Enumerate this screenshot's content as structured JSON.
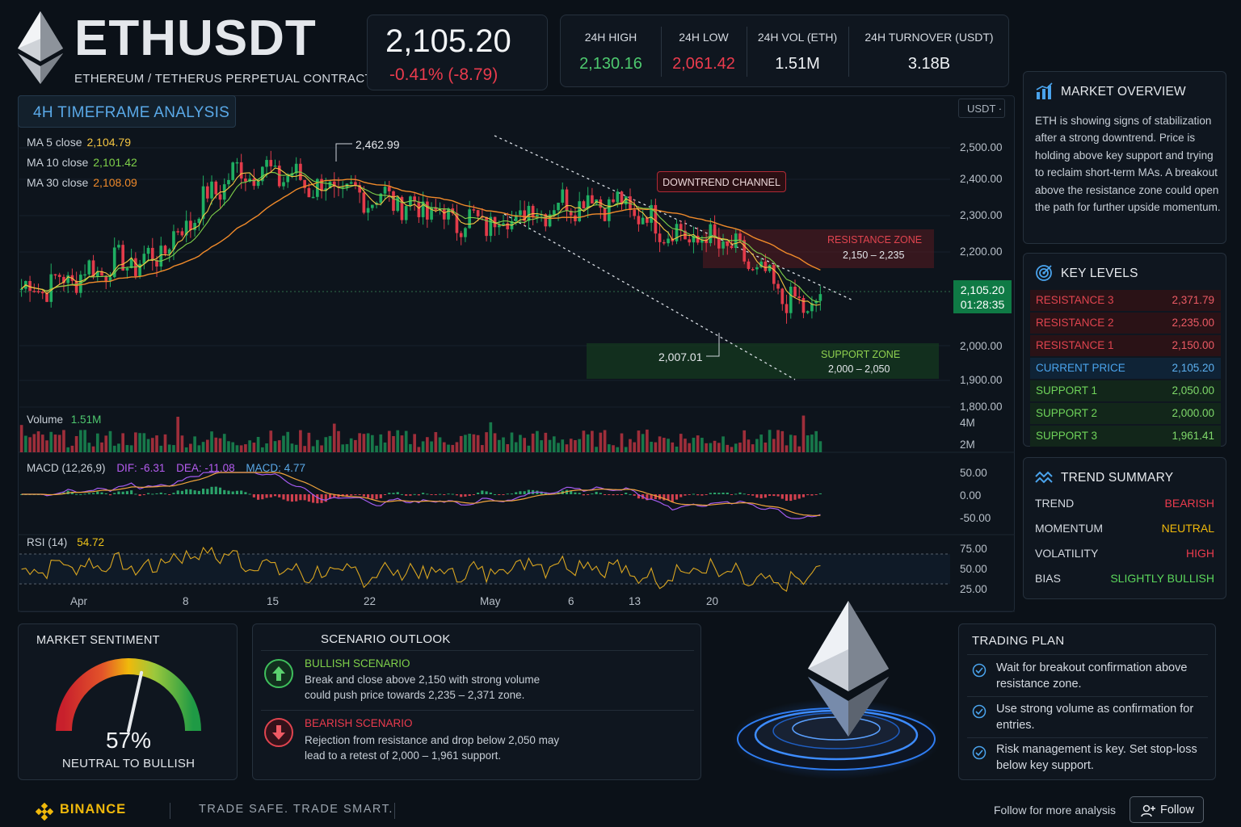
{
  "header": {
    "symbol": "ETHUSDT",
    "subtitle": "ETHEREUM / TETHERUS PERPETUAL CONTRACT",
    "last_price": "2,105.20",
    "change": "-0.41% (-8.79)",
    "stats": [
      {
        "label": "24H HIGH",
        "value": "2,130.16",
        "color": "#4ec96f"
      },
      {
        "label": "24H LOW",
        "value": "2,061.42",
        "color": "#ea3b4d"
      },
      {
        "label": "24H VOL (ETH)",
        "value": "1.51M",
        "color": "#eef1f4"
      },
      {
        "label": "24H TURNOVER (USDT)",
        "value": "3.18B",
        "color": "#eef1f4"
      }
    ]
  },
  "chart": {
    "timeframe": "4H TIMEFRAME ANALYSIS",
    "quote_unit": "USDT",
    "ma": [
      {
        "label": "MA 5 close",
        "value": "2,104.79",
        "color": "#f4c542"
      },
      {
        "label": "MA 10 close",
        "value": "2,101.42",
        "color": "#7fd14a"
      },
      {
        "label": "MA 30 close",
        "value": "2,108.09",
        "color": "#f08a2a"
      }
    ],
    "y_ticks": [
      "2,500.00",
      "2,400.00",
      "2,300.00",
      "2,200.00",
      "2,000.00",
      "1,900.00",
      "1,800.00"
    ],
    "x_ticks": [
      "Apr",
      "8",
      "15",
      "22",
      "May",
      "6",
      "13",
      "20"
    ],
    "price_tag": "2,105.20",
    "countdown": "01:28:35",
    "high_marker": "2,462.99",
    "low_marker": "2,007.01",
    "downtrend_label": "DOWNTREND CHANNEL",
    "resistance_zone": {
      "label": "RESISTANCE ZONE",
      "range": "2,150 – 2,235"
    },
    "support_zone": {
      "label": "SUPPORT ZONE",
      "range": "2,000 – 2,050"
    },
    "volume": {
      "label": "Volume",
      "value": "1.51M",
      "ticks": [
        "4M",
        "2M"
      ]
    },
    "macd": {
      "label": "MACD (12,26,9)",
      "dif": "DIF: -6.31",
      "dea": "DEA: -11.08",
      "macd": "MACD: 4.77",
      "ticks": [
        "50.00",
        "0.00",
        "-50.00"
      ]
    },
    "rsi": {
      "label": "RSI (14)",
      "value": "54.72",
      "ticks": [
        "75.00",
        "50.00",
        "25.00"
      ]
    }
  },
  "chart_data": {
    "type": "line",
    "title": "",
    "xlabel": "",
    "ylabel": "",
    "ylim": [
      1800,
      2500
    ],
    "x": [
      "Apr",
      "8",
      "15",
      "22",
      "May",
      "6",
      "13",
      "20"
    ],
    "series": [
      {
        "name": "",
        "values": [
          2120,
          2190,
          2440,
          2370,
          2300,
          2360,
          2250,
          2050
        ]
      }
    ]
  },
  "sidebar": {
    "overview": {
      "title": "MARKET OVERVIEW",
      "text": "ETH is showing signs of stabilization after a strong downtrend. Price is holding above key support and trying to reclaim short-term MAs. A breakout above the resistance zone could open the path for further upside momentum."
    },
    "levels": {
      "title": "KEY LEVELS",
      "rows": [
        {
          "name": "RESISTANCE 3",
          "price": "2,371.79",
          "kind": "res"
        },
        {
          "name": "RESISTANCE 2",
          "price": "2,235.00",
          "kind": "res"
        },
        {
          "name": "RESISTANCE 1",
          "price": "2,150.00",
          "kind": "res"
        },
        {
          "name": "CURRENT PRICE",
          "price": "2,105.20",
          "kind": "cur"
        },
        {
          "name": "SUPPORT 1",
          "price": "2,050.00",
          "kind": "sup"
        },
        {
          "name": "SUPPORT 2",
          "price": "2,000.00",
          "kind": "sup"
        },
        {
          "name": "SUPPORT 3",
          "price": "1,961.41",
          "kind": "sup"
        }
      ]
    },
    "trend": {
      "title": "TREND SUMMARY",
      "rows": [
        {
          "name": "TREND",
          "value": "BEARISH",
          "color": "#ea3b4d"
        },
        {
          "name": "MOMENTUM",
          "value": "NEUTRAL",
          "color": "#f0b90b"
        },
        {
          "name": "VOLATILITY",
          "value": "HIGH",
          "color": "#ea3b4d"
        },
        {
          "name": "BIAS",
          "value": "SLIGHTLY BULLISH",
          "color": "#5bd65b"
        }
      ]
    }
  },
  "sentiment": {
    "title": "MARKET SENTIMENT",
    "value": "57%",
    "level": 0.57,
    "label": "NEUTRAL TO BULLISH"
  },
  "scenarios": {
    "title": "SCENARIO OUTLOOK",
    "bullish": {
      "title": "BULLISH SCENARIO",
      "text": "Break and close above 2,150 with strong volume could push price towards 2,235 – 2,371 zone."
    },
    "bearish": {
      "title": "BEARISH SCENARIO",
      "text": "Rejection from resistance and drop below 2,050 may lead to a retest of 2,000 – 1,961 support."
    }
  },
  "plan": {
    "title": "TRADING PLAN",
    "items": [
      "Wait for breakout confirmation above resistance zone.",
      "Use strong volume as confirmation for entries.",
      "Risk management is key. Set stop-loss below key support."
    ]
  },
  "footer": {
    "brand": "BINANCE",
    "tagline": "TRADE SAFE. TRADE SMART.",
    "follow_text": "Follow for more analysis",
    "follow_button": "Follow"
  }
}
